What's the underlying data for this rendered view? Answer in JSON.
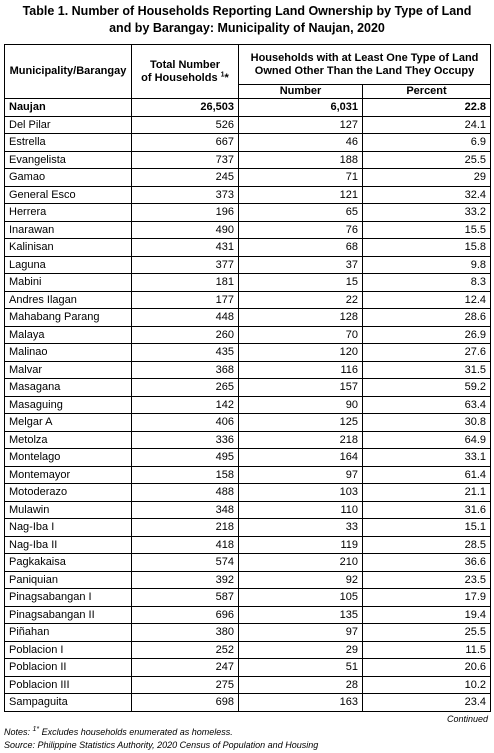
{
  "title": {
    "line1": "Table 1. Number of Households Reporting Land Ownership by Type of Land",
    "line2": "and by Barangay: Municipality of Naujan, 2020"
  },
  "table": {
    "header": {
      "area": "Municipality/Barangay",
      "total_line1": "Total Number",
      "total_line2": "of Households",
      "total_sup": "1",
      "total_mark": "*",
      "group_line1": "Households with at Least One Type of Land",
      "group_line2": "Owned Other Than the Land They Occupy",
      "number": "Number",
      "percent": "Percent"
    },
    "rows": [
      [
        "Naujan",
        "26,503",
        "6,031",
        "22.8"
      ],
      [
        "Del Pilar",
        "526",
        "127",
        "24.1"
      ],
      [
        "Estrella",
        "667",
        "46",
        "6.9"
      ],
      [
        "Evangelista",
        "737",
        "188",
        "25.5"
      ],
      [
        "Gamao",
        "245",
        "71",
        "29"
      ],
      [
        "General Esco",
        "373",
        "121",
        "32.4"
      ],
      [
        "Herrera",
        "196",
        "65",
        "33.2"
      ],
      [
        "Inarawan",
        "490",
        "76",
        "15.5"
      ],
      [
        "Kalinisan",
        "431",
        "68",
        "15.8"
      ],
      [
        "Laguna",
        "377",
        "37",
        "9.8"
      ],
      [
        "Mabini",
        "181",
        "15",
        "8.3"
      ],
      [
        "Andres Ilagan",
        "177",
        "22",
        "12.4"
      ],
      [
        "Mahabang Parang",
        "448",
        "128",
        "28.6"
      ],
      [
        "Malaya",
        "260",
        "70",
        "26.9"
      ],
      [
        "Malinao",
        "435",
        "120",
        "27.6"
      ],
      [
        "Malvar",
        "368",
        "116",
        "31.5"
      ],
      [
        "Masagana",
        "265",
        "157",
        "59.2"
      ],
      [
        "Masaguing",
        "142",
        "90",
        "63.4"
      ],
      [
        "Melgar A",
        "406",
        "125",
        "30.8"
      ],
      [
        "Metolza",
        "336",
        "218",
        "64.9"
      ],
      [
        "Montelago",
        "495",
        "164",
        "33.1"
      ],
      [
        "Montemayor",
        "158",
        "97",
        "61.4"
      ],
      [
        "Motoderazo",
        "488",
        "103",
        "21.1"
      ],
      [
        "Mulawin",
        "348",
        "110",
        "31.6"
      ],
      [
        "Nag-Iba I",
        "218",
        "33",
        "15.1"
      ],
      [
        "Nag-Iba II",
        "418",
        "119",
        "28.5"
      ],
      [
        "Pagkakaisa",
        "574",
        "210",
        "36.6"
      ],
      [
        "Paniquian",
        "392",
        "92",
        "23.5"
      ],
      [
        "Pinagsabangan I",
        "587",
        "105",
        "17.9"
      ],
      [
        "Pinagsabangan II",
        "696",
        "135",
        "19.4"
      ],
      [
        "Piñahan",
        "380",
        "97",
        "25.5"
      ],
      [
        "Poblacion I",
        "252",
        "29",
        "11.5"
      ],
      [
        "Poblacion II",
        "247",
        "51",
        "20.6"
      ],
      [
        "Poblacion III",
        "275",
        "28",
        "10.2"
      ],
      [
        "Sampaguita",
        "698",
        "163",
        "23.4"
      ]
    ]
  },
  "continued": "Continued",
  "notes": {
    "label": "Notes:",
    "sup": "1*",
    "text": "Excludes households enumerated as homeless."
  },
  "source": {
    "label": "Source:",
    "text": "Philippine Statistics Authority, 2020 Census of Population and Housing"
  }
}
